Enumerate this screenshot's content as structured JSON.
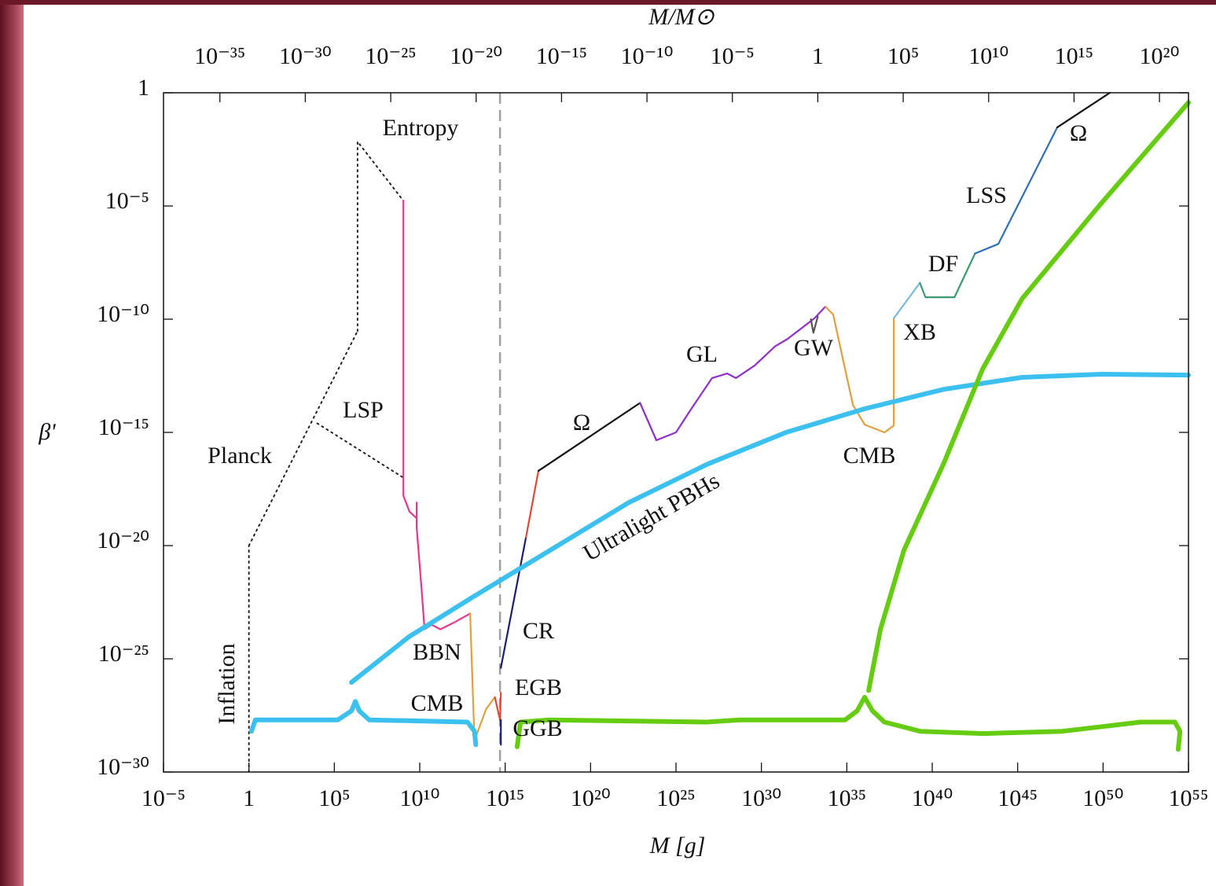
{
  "chart_data": {
    "type": "line",
    "xlabel": "M [g]",
    "ylabel": "β'",
    "x2label": "M/M⊙",
    "xscale": "log",
    "yscale": "log",
    "xlim": [
      1e-05,
      1e+55
    ],
    "ylim": [
      1e-30,
      1
    ],
    "x2lim": [
      5e-39,
      5e+21
    ],
    "xticks": [
      {
        "value": 1e-05,
        "label": "10⁻⁵"
      },
      1,
      {
        "value": 100000.0,
        "label": "10⁵"
      },
      {
        "value": 10000000000.0,
        "label": "10¹⁰"
      },
      {
        "value": 1000000000000000.0,
        "label": "10¹⁵"
      },
      {
        "value": 1e+20,
        "label": "10²⁰"
      },
      {
        "value": 1e+25,
        "label": "10²⁵"
      },
      {
        "value": 1e+30,
        "label": "10³⁰"
      },
      {
        "value": 1e+35,
        "label": "10³⁵"
      },
      {
        "value": 1e+40,
        "label": "10⁴⁰"
      },
      {
        "value": 1e+45,
        "label": "10⁴⁵"
      },
      {
        "value": 1e+50,
        "label": "10⁵⁰"
      },
      {
        "value": 1e+55,
        "label": "10⁵⁵"
      }
    ],
    "yticks": [
      1,
      {
        "value": 1e-05,
        "label": "10⁻⁵"
      },
      {
        "value": 1e-10,
        "label": "10⁻¹⁰"
      },
      {
        "value": 1e-15,
        "label": "10⁻¹⁵"
      },
      {
        "value": 1e-20,
        "label": "10⁻²⁰"
      },
      {
        "value": 1e-25,
        "label": "10⁻²⁵"
      },
      {
        "value": 1e-30,
        "label": "10⁻³⁰"
      }
    ],
    "x2ticks": [
      {
        "value": 1e-35,
        "label": "10⁻³⁵"
      },
      {
        "value": 1e-30,
        "label": "10⁻³⁰"
      },
      {
        "value": 1e-25,
        "label": "10⁻²⁵"
      },
      {
        "value": 1e-20,
        "label": "10⁻²⁰"
      },
      {
        "value": 1e-15,
        "label": "10⁻¹⁵"
      },
      {
        "value": 1e-10,
        "label": "10⁻¹⁰"
      },
      {
        "value": 1e-05,
        "label": "10⁻⁵"
      },
      1,
      {
        "value": 100000.0,
        "label": "10⁵"
      },
      {
        "value": 10000000000.0,
        "label": "10¹⁰"
      },
      {
        "value": 1000000000000000.0,
        "label": "10¹⁵"
      },
      {
        "value": 1e+20,
        "label": "10²⁰"
      }
    ],
    "vlines": [
      {
        "x": 500000000000000.0,
        "color": "#a0a0a0",
        "style": "dashed"
      }
    ],
    "series": [
      {
        "name": "Inflation",
        "color": "#222222",
        "style": "dotted",
        "x": [
          1,
          1
        ],
        "values": [
          1e-30,
          1e-20
        ]
      },
      {
        "name": "Planck",
        "color": "#222222",
        "style": "dotted",
        "x": [
          1,
          2300000.0
        ],
        "values": [
          1e-20,
          3e-11
        ]
      },
      {
        "name": "LSP",
        "color": "#222222",
        "style": "dotted",
        "x": [
          10000.0,
          1100000000.0
        ],
        "values": [
          2.5e-15,
          1e-17
        ]
      },
      {
        "name": "Entropy",
        "color": "#222222",
        "style": "dotted",
        "x": [
          2300000.0,
          2300000.0,
          1100000000.0
        ],
        "values": [
          3e-11,
          0.007,
          1.7e-05
        ]
      },
      {
        "name": "BBN",
        "color": "#e8368c",
        "style": "solid",
        "x": [
          1100000000.0,
          1100000000.0,
          2500000000.0,
          6600000000.0,
          6600000000.0,
          6600000000.0,
          13000000000.0,
          19000000000.0,
          50000000000.0,
          160000000000.0,
          1000000000000.0,
          8900000000000.0
        ],
        "values": [
          1.7e-05,
          1.6e-18,
          3.2e-19,
          1.6e-19,
          7.9e-19,
          6.3e-20,
          1e-22,
          2e-24,
          3.2e-24,
          2e-24,
          4e-24,
          1e-23
        ]
      },
      {
        "name": "CMB",
        "color": "#e0a040",
        "style": "solid",
        "x": [
          8900000000000.0,
          16000000000000.0,
          79000000000000.0,
          250000000000000.0
        ],
        "values": [
          1e-23,
          2.5e-29,
          6.3e-28,
          2e-27
        ]
      },
      {
        "name": "EGB",
        "color": "#e04838",
        "style": "solid",
        "x": [
          250000000000000.0,
          500000000000000.0,
          560000000000000.0,
          1000000000000000.0,
          1.6e+16,
          8.9e+16
        ],
        "values": [
          2e-27,
          2e-28,
          3.2e-27,
          null,
          2e-20,
          2e-17
        ]
      },
      {
        "name": "CR",
        "color": "#1e1e70",
        "style": "solid",
        "x": [
          560000000000000.0,
          1.6e+16
        ],
        "values": [
          4e-26,
          2e-20
        ]
      },
      {
        "name": "GGB",
        "color": "#1e1e70",
        "style": "solid",
        "x": [
          560000000000000.0,
          560000000000000.0
        ],
        "values": [
          2e-28,
          1.6e-29
        ]
      },
      {
        "name": "Ω",
        "color": "#111111",
        "style": "solid",
        "x": [
          8.9e+16,
          7.9e+22
        ],
        "values": [
          2e-17,
          2e-14
        ]
      },
      {
        "name": "GL",
        "color": "#9030c8",
        "style": "solid",
        "x": [
          7.9e+22,
          7.1e+23,
          1e+25,
          7.9e+25,
          1.3e+27,
          1e+28,
          3.2e+28,
          4e+29,
          6.3e+30,
          3.2e+31,
          1.3e+33,
          5.6e+33
        ],
        "values": [
          2e-14,
          4.5e-16,
          1e-15,
          1.1e-14,
          2.5e-13,
          4e-13,
          2.5e-13,
          8.9e-13,
          6.3e-12,
          1.3e-11,
          1.1e-10,
          3.6e-10
        ]
      },
      {
        "name": "GW",
        "color": "#555555",
        "style": "solid",
        "x": [
          7.9e+32,
          1.1e+33,
          2e+33
        ],
        "values": [
          1e-10,
          2.5e-11,
          1.3e-10
        ]
      },
      {
        "name": "CMB",
        "color": "#e0a040",
        "style": "solid",
        "x": [
          5.6e+33,
          1.6e+34,
          7.9e+34,
          2.3e+35,
          1.1e+36,
          1.6e+37,
          5.6e+37,
          5.6e+37
        ],
        "values": [
          3.6e-10,
          1.6e-10,
          6.3e-13,
          1.6e-14,
          2.2e-15,
          1e-15,
          2e-15,
          1.1e-10
        ]
      },
      {
        "name": "XB",
        "color": "#7ab8e0",
        "style": "solid",
        "x": [
          5.6e+37,
          1.9e+39
        ],
        "values": [
          1.1e-10,
          4e-09
        ]
      },
      {
        "name": "DF",
        "color": "#3a9a70",
        "style": "solid",
        "x": [
          1.9e+39,
          4e+39,
          2e+41,
          3.2e+42
        ],
        "values": [
          4e-09,
          9.3e-10,
          9.3e-10,
          7.9e-08
        ]
      },
      {
        "name": "LSS",
        "color": "#3070b0",
        "style": "solid",
        "x": [
          3.2e+42,
          7.4e+43,
          2.1e+47
        ],
        "values": [
          7.9e-08,
          2.1e-07,
          0.03
        ]
      },
      {
        "name": "Ω",
        "color": "#111111",
        "style": "solid",
        "x": [
          2.1e+47,
          2.5e+50
        ],
        "values": [
          0.03,
          1
        ]
      },
      {
        "name": "Ultralight PBHs",
        "color": "#3cc0f0",
        "style": "marker",
        "x": [
          1000000.0,
          2300000000.0,
          11000000000000.0,
          4.4e+17,
          1.7e+22,
          7.1e+26,
          2.8e+31,
          1.1e+36,
          4.5e+40,
          1.8e+45,
          7.1e+49,
          1e+55
        ],
        "values": [
          9.1e-27,
          9.3e-25,
          5e-23,
          6.3e-21,
          7.9e-19,
          4e-17,
          1e-15,
          1.1e-14,
          7.9e-14,
          2.7e-13,
          3.7e-13,
          3.4e-13
        ]
      },
      {
        "color": "#3cc0f0",
        "style": "marker",
        "x": [
          1.4,
          2.4,
          160000.0,
          1000000.0,
          1700000.0,
          2900000.0,
          11000000.0,
          6300000000000.0,
          16000000000000.0,
          19000000000000.0
        ],
        "values": [
          6.3e-29,
          2e-28,
          2e-28,
          5e-28,
          1.3e-27,
          5e-28,
          2e-28,
          1.6e-28,
          6.3e-29,
          1.6e-29
        ]
      },
      {
        "color": "#66cc11",
        "style": "marker",
        "x": [
          1.9e+36,
          9.3e+36,
          2.2e+38,
          4.5e+40,
          8.9e+42,
          1.8e+45,
          7.1e+49,
          1e+55
        ],
        "values": [
          4e-27,
          2e-24,
          6.3e-21,
          4e-17,
          6.3e-13,
          7.9e-10,
          1.2e-05,
          0.37
        ]
      },
      {
        "color": "#66cc11",
        "style": "marker",
        "x": [
          5000000000000000.0,
          7900000000000000.0,
          4e+17,
          6.3e+26,
          5e+28,
          7.9e+34,
          4e+35,
          1.1e+36,
          3.2e+36,
          1.6e+37,
          2e+39,
          1e+43,
          4e+47,
          1.6e+52,
          1.6e+54,
          3.2e+54,
          2.5e+54
        ],
        "values": [
          1.3e-29,
          1.6e-28,
          2e-28,
          1.6e-28,
          2e-28,
          2e-28,
          5e-28,
          2e-27,
          5e-28,
          1.6e-28,
          6.3e-29,
          5e-29,
          6.3e-29,
          1.6e-28,
          1.6e-28,
          6.3e-29,
          1e-29
        ]
      }
    ]
  }
}
